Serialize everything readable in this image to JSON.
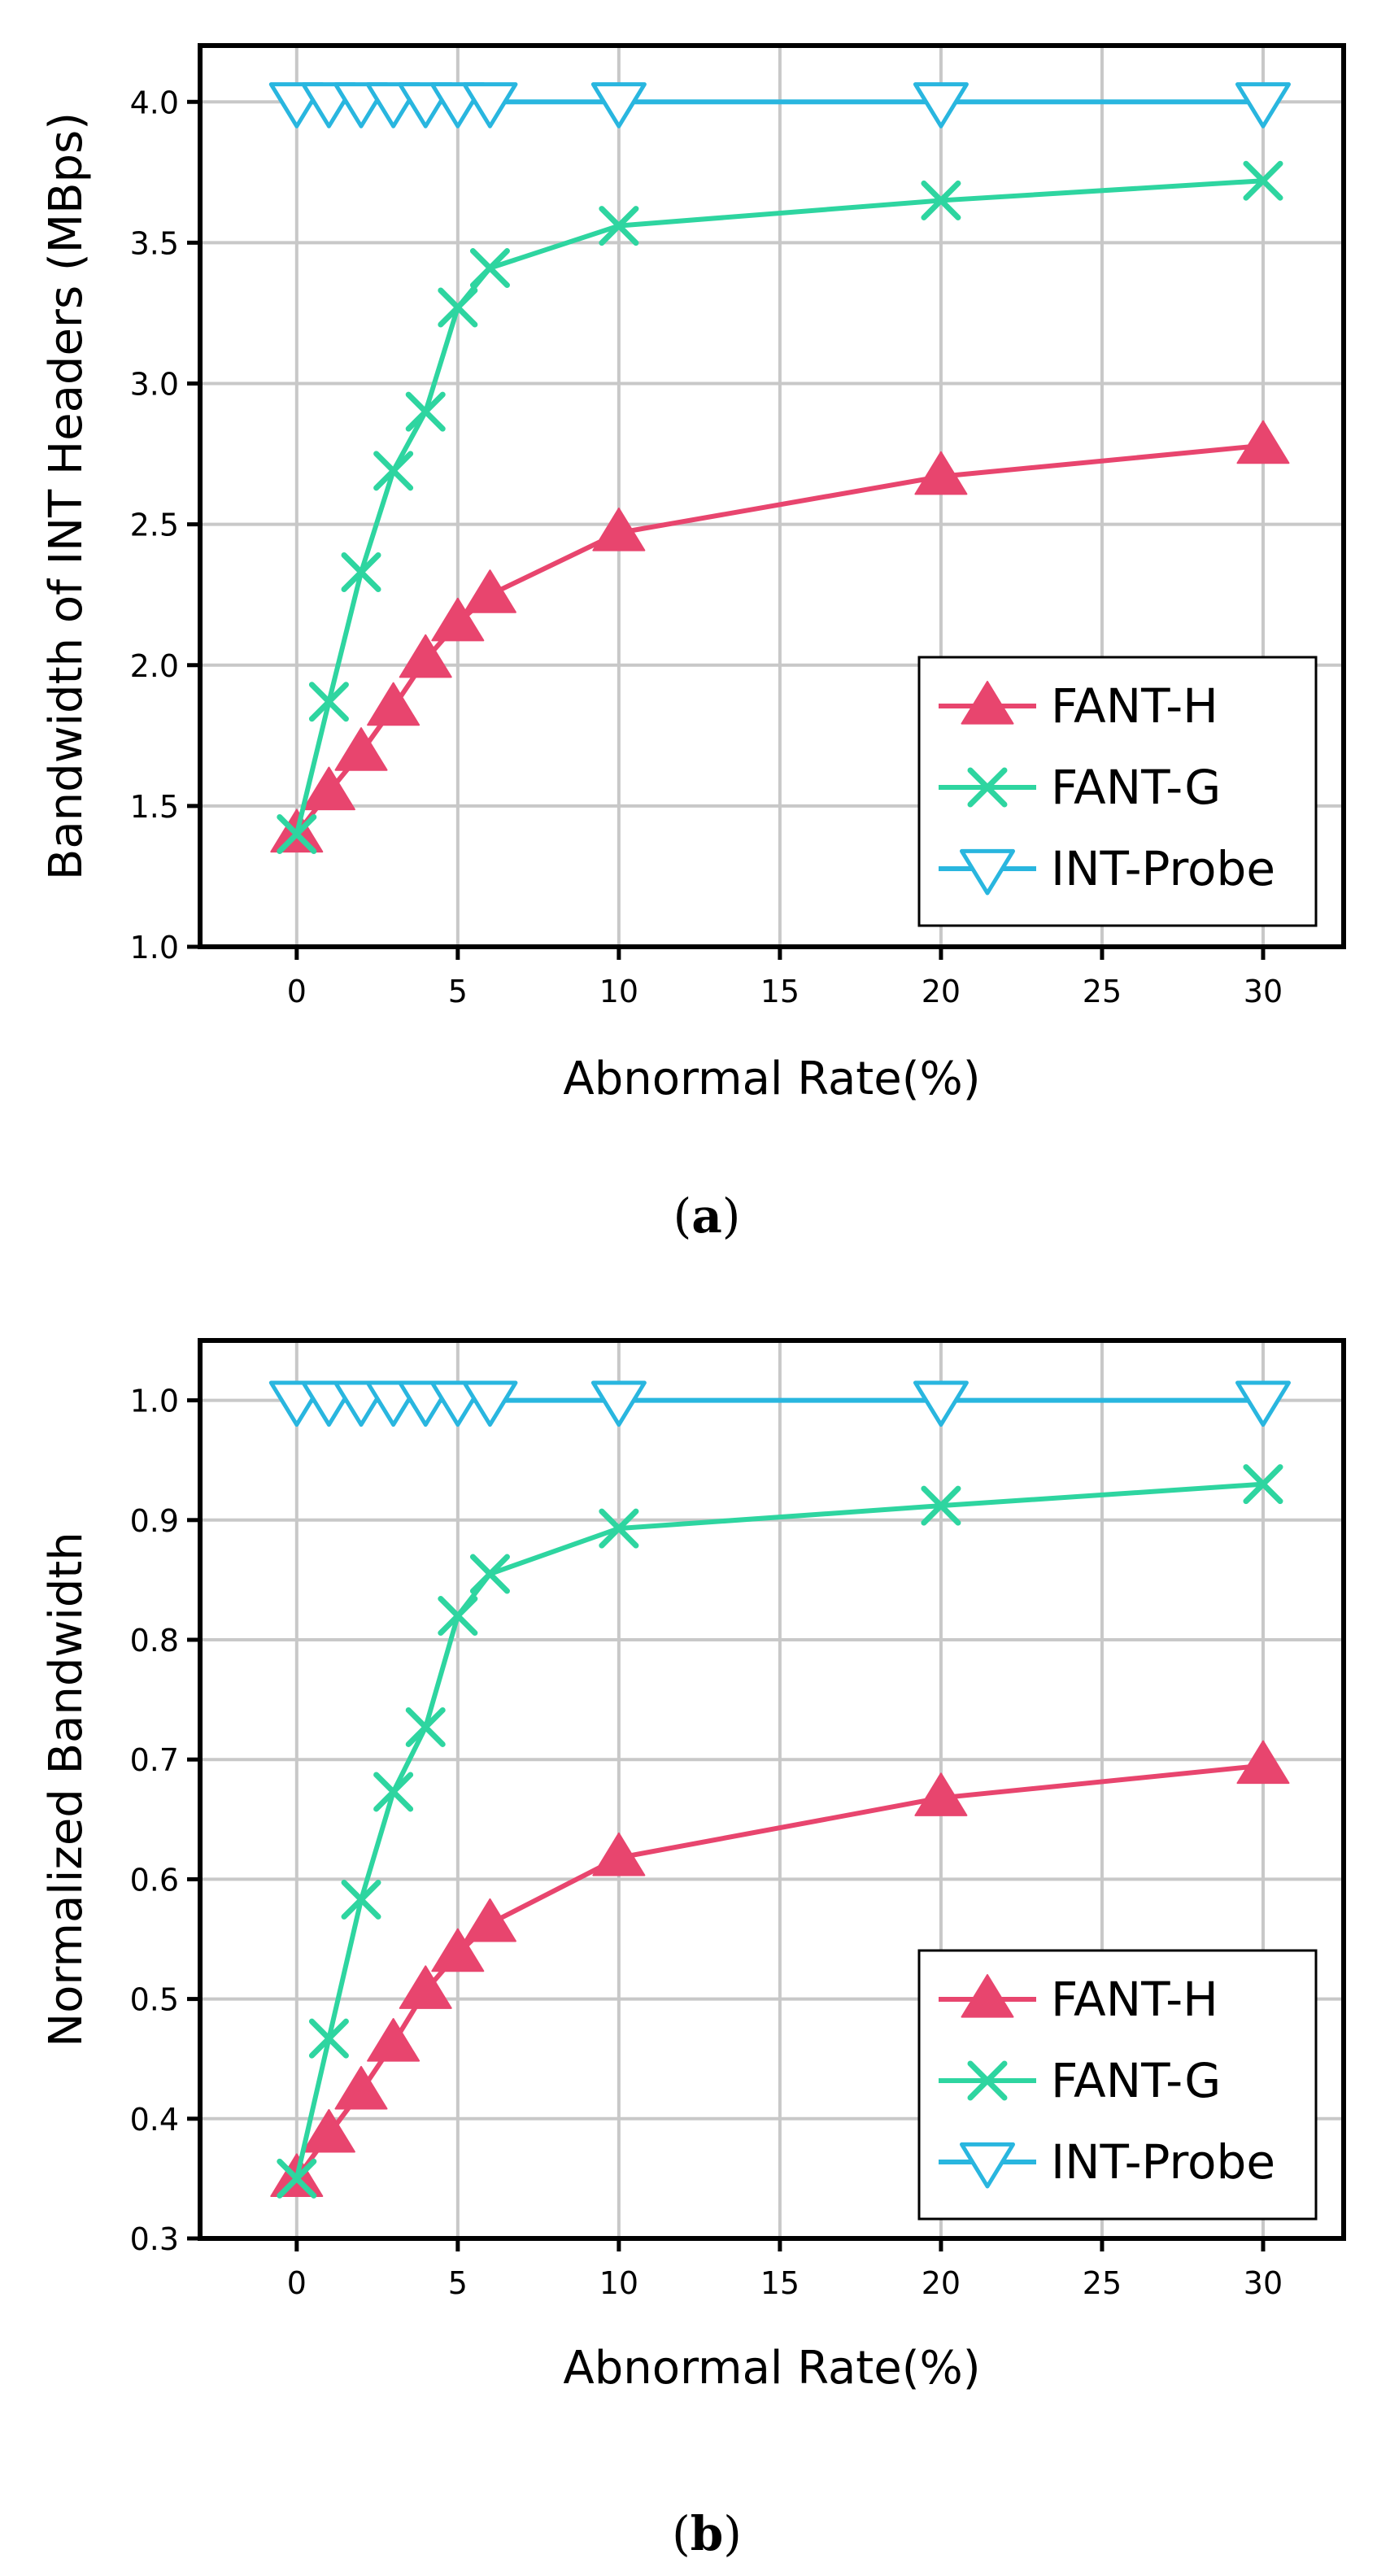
{
  "figure": {
    "panels": [
      "a",
      "b"
    ]
  },
  "chart_data": [
    {
      "type": "line",
      "panel": "a",
      "caption_open": "(",
      "caption_letter": "a",
      "caption_close": ")",
      "title": "",
      "xlabel": "Abnormal Rate(%)",
      "ylabel": "Bandwidth of INT Headers (MBps)",
      "xlim": [
        -3,
        32.5
      ],
      "ylim": [
        1.0,
        4.2
      ],
      "xticks": [
        0,
        5,
        10,
        15,
        20,
        25,
        30
      ],
      "xtick_labels": [
        "0",
        "5",
        "10",
        "15",
        "20",
        "25",
        "30"
      ],
      "yticks": [
        1.0,
        1.5,
        2.0,
        2.5,
        3.0,
        3.5,
        4.0
      ],
      "ytick_labels": [
        "1.0",
        "1.5",
        "2.0",
        "2.5",
        "3.0",
        "3.5",
        "4.0"
      ],
      "grid": true,
      "legend_position": "bottom-right",
      "x": [
        0,
        1,
        2,
        3,
        4,
        5,
        6,
        10,
        20,
        30
      ],
      "series": [
        {
          "name": "FANT-H",
          "color": "#e8456e",
          "marker": "triangle-up",
          "values": [
            1.4,
            1.55,
            1.69,
            1.85,
            2.02,
            2.15,
            2.25,
            2.47,
            2.67,
            2.78
          ]
        },
        {
          "name": "FANT-G",
          "color": "#2ed5a0",
          "marker": "x",
          "values": [
            1.4,
            1.87,
            2.33,
            2.69,
            2.9,
            3.27,
            3.41,
            3.56,
            3.65,
            3.72
          ]
        },
        {
          "name": "INT-Probe",
          "color": "#29b6df",
          "marker": "triangle-down",
          "values": [
            4.0,
            4.0,
            4.0,
            4.0,
            4.0,
            4.0,
            4.0,
            4.0,
            4.0,
            4.0
          ]
        }
      ]
    },
    {
      "type": "line",
      "panel": "b",
      "caption_open": "(",
      "caption_letter": "b",
      "caption_close": ")",
      "title": "",
      "xlabel": "Abnormal Rate(%)",
      "ylabel": "Normalized Bandwidth",
      "xlim": [
        -3,
        32.5
      ],
      "ylim": [
        0.3,
        1.05
      ],
      "xticks": [
        0,
        5,
        10,
        15,
        20,
        25,
        30
      ],
      "xtick_labels": [
        "0",
        "5",
        "10",
        "15",
        "20",
        "25",
        "30"
      ],
      "yticks": [
        0.3,
        0.4,
        0.5,
        0.6,
        0.7,
        0.8,
        0.9,
        1.0
      ],
      "ytick_labels": [
        "0.3",
        "0.4",
        "0.5",
        "0.6",
        "0.7",
        "0.8",
        "0.9",
        "1.0"
      ],
      "grid": true,
      "legend_position": "bottom-right",
      "x": [
        0,
        1,
        2,
        3,
        4,
        5,
        6,
        10,
        20,
        30
      ],
      "series": [
        {
          "name": "FANT-H",
          "color": "#e8456e",
          "marker": "triangle-up",
          "values": [
            0.35,
            0.387,
            0.423,
            0.463,
            0.507,
            0.538,
            0.563,
            0.618,
            0.668,
            0.695
          ]
        },
        {
          "name": "FANT-G",
          "color": "#2ed5a0",
          "marker": "x",
          "values": [
            0.35,
            0.467,
            0.583,
            0.673,
            0.727,
            0.82,
            0.855,
            0.893,
            0.912,
            0.93
          ]
        },
        {
          "name": "INT-Probe",
          "color": "#29b6df",
          "marker": "triangle-down",
          "values": [
            1.0,
            1.0,
            1.0,
            1.0,
            1.0,
            1.0,
            1.0,
            1.0,
            1.0,
            1.0
          ]
        }
      ]
    }
  ]
}
